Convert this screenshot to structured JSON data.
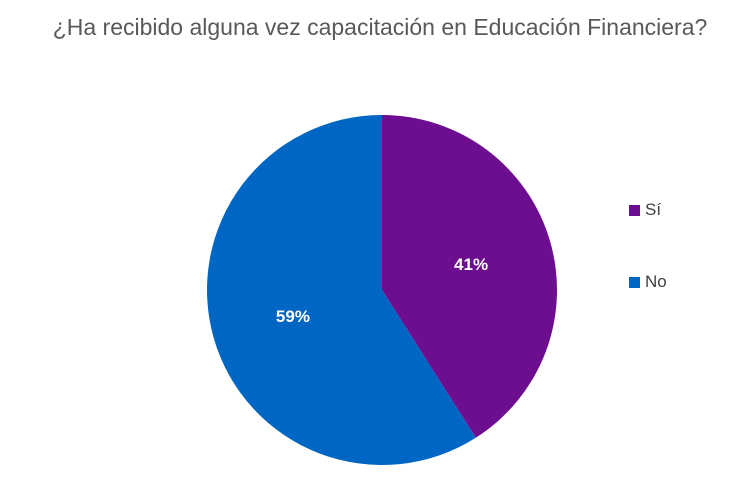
{
  "chart_data": {
    "type": "pie",
    "title": "¿Ha recibido alguna vez capacitación en Educación Financiera?",
    "slices": [
      {
        "label": "Sí",
        "value": 41,
        "data_label": "41%",
        "color": "#6D0E91"
      },
      {
        "label": "No",
        "value": 59,
        "data_label": "59%",
        "color": "#0066C4"
      }
    ],
    "legend_position": "right"
  }
}
